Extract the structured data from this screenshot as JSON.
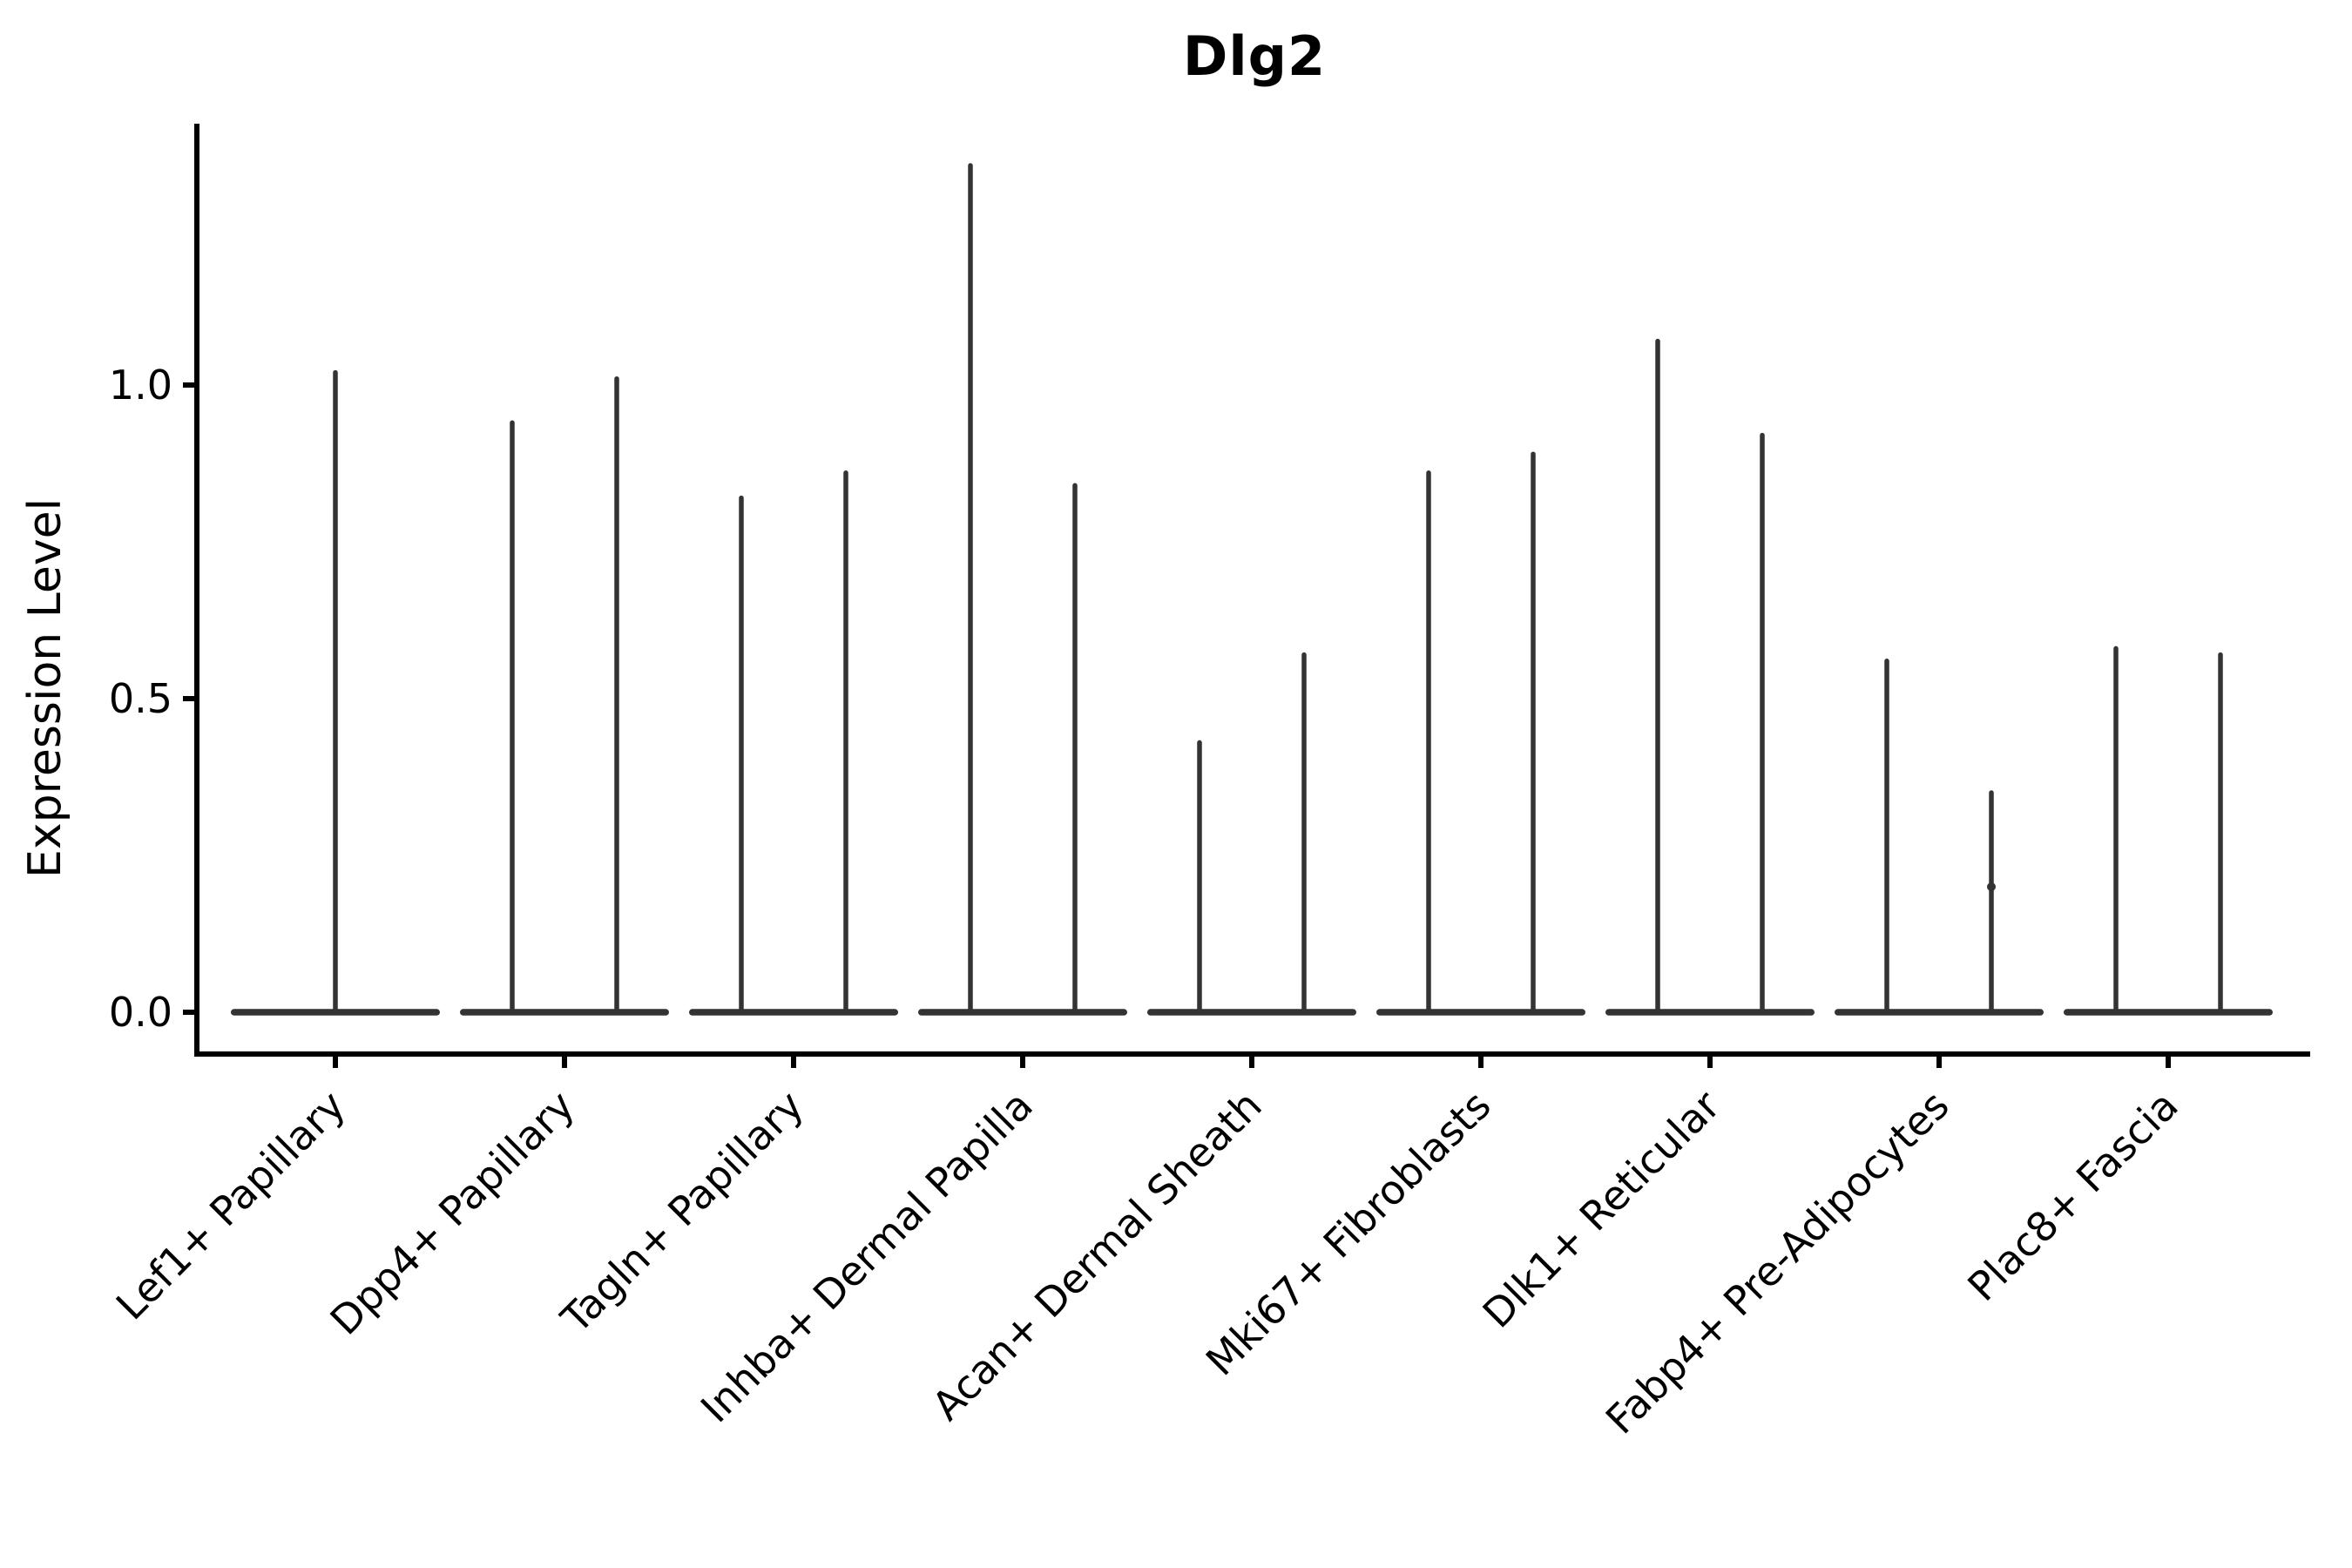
{
  "figure": {
    "background_color": "#ffffff",
    "axis_color": "#000000",
    "violin_color": "#333333"
  },
  "chart_data": {
    "type": "violin",
    "title": "Dlg2",
    "xlabel": "",
    "ylabel": "Expression Level",
    "ylim": [
      -0.07,
      1.41
    ],
    "yticks": [
      {
        "value": 0.0,
        "label": "0.0"
      },
      {
        "value": 0.5,
        "label": "0.5"
      },
      {
        "value": 1.0,
        "label": "1.0"
      }
    ],
    "grid": false,
    "legend": "none",
    "x_tick_rotation_deg": 45,
    "categories": [
      "Lef1+ Papillary",
      "Dpp4+ Papillary",
      "Tagln+ Papillary",
      "Inhba+ Dermal Papilla",
      "Acan+ Dermal Sheath",
      "Mki67+ Fibroblasts",
      "Dlk1+ Reticular",
      "Fabp4+ Pre-Adipocytes",
      "Plac8+ Fascia"
    ],
    "violins": [
      {
        "category": "Lef1+ Papillary",
        "spike_maxima": [
          1.02
        ],
        "baseline_value": 0.0
      },
      {
        "category": "Dpp4+ Papillary",
        "spike_maxima": [
          0.94,
          1.01
        ],
        "baseline_value": 0.0
      },
      {
        "category": "Tagln+ Papillary",
        "spike_maxima": [
          0.82,
          0.86
        ],
        "baseline_value": 0.0
      },
      {
        "category": "Inhba+ Dermal Papilla",
        "spike_maxima": [
          1.35,
          0.84
        ],
        "baseline_value": 0.0
      },
      {
        "category": "Acan+ Dermal Sheath",
        "spike_maxima": [
          0.43,
          0.57
        ],
        "baseline_value": 0.0
      },
      {
        "category": "Mki67+ Fibroblasts",
        "spike_maxima": [
          0.86,
          0.89
        ],
        "baseline_value": 0.0
      },
      {
        "category": "Dlk1+ Reticular",
        "spike_maxima": [
          1.07,
          0.92
        ],
        "baseline_value": 0.0
      },
      {
        "category": "Fabp4+ Pre-Adipocytes",
        "spike_maxima": [
          0.56,
          0.35
        ],
        "baseline_value": 0.0,
        "extra_points": [
          {
            "spike_index": 1,
            "value": 0.2
          }
        ]
      },
      {
        "category": "Plac8+ Fascia",
        "spike_maxima": [
          0.58,
          0.57
        ],
        "baseline_value": 0.0
      }
    ]
  }
}
